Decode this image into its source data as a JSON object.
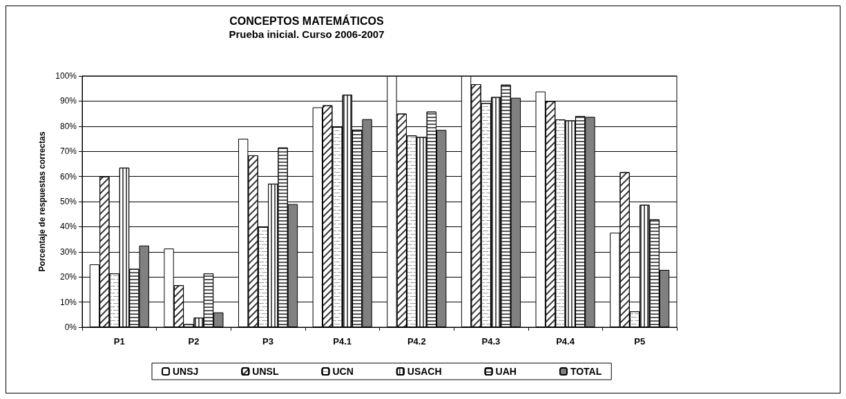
{
  "chart_data": {
    "type": "bar",
    "title": "CONCEPTOS MATEMÁTICOS",
    "subtitle": "Prueba inicial. Curso 2006-2007",
    "ylabel": "Porcentaje de respuestas correctas",
    "categories": [
      "P1",
      "P2",
      "P3",
      "P4.1",
      "P4.2",
      "P4.3",
      "P4.4",
      "P5"
    ],
    "series": [
      {
        "name": "UNSJ",
        "color": "#ffffff",
        "values": [
          25,
          31.3,
          75,
          87.5,
          100,
          100,
          93.8,
          37.6
        ]
      },
      {
        "name": "UNSL",
        "color": "#ffffff",
        "values": [
          60,
          16.7,
          68.4,
          88.3,
          85,
          96.7,
          90,
          61.7
        ]
      },
      {
        "name": "UCN",
        "color": "#ffffff",
        "values": [
          21.4,
          1.2,
          39.9,
          79.7,
          76.3,
          89.2,
          82.7,
          6.3
        ]
      },
      {
        "name": "USACH",
        "color": "#ffffff",
        "values": [
          63.5,
          3.8,
          57.1,
          92.5,
          75.7,
          91.6,
          82.3,
          48.7
        ]
      },
      {
        "name": "UAH",
        "color": "#ffffff",
        "values": [
          23.2,
          21.4,
          71.5,
          78.6,
          85.8,
          96.5,
          84,
          42.9
        ]
      },
      {
        "name": "TOTAL",
        "color": "#808080",
        "values": [
          32.5,
          5.9,
          49,
          82.8,
          78.5,
          91.3,
          83.7,
          22.8
        ]
      }
    ],
    "ylim": [
      0,
      100
    ],
    "yticks": [
      {
        "value": 0,
        "label": "0%"
      },
      {
        "value": 10,
        "label": "10%"
      },
      {
        "value": 20,
        "label": "20%"
      },
      {
        "value": 30,
        "label": "30%"
      },
      {
        "value": 40,
        "label": "40%"
      },
      {
        "value": 50,
        "label": "50%"
      },
      {
        "value": 60,
        "label": "60%"
      },
      {
        "value": 70,
        "label": "70%"
      },
      {
        "value": 80,
        "label": "80%"
      },
      {
        "value": 90,
        "label": "90%"
      },
      {
        "value": 100,
        "label": "100%"
      }
    ],
    "grid": "y",
    "legend": "bottom"
  }
}
